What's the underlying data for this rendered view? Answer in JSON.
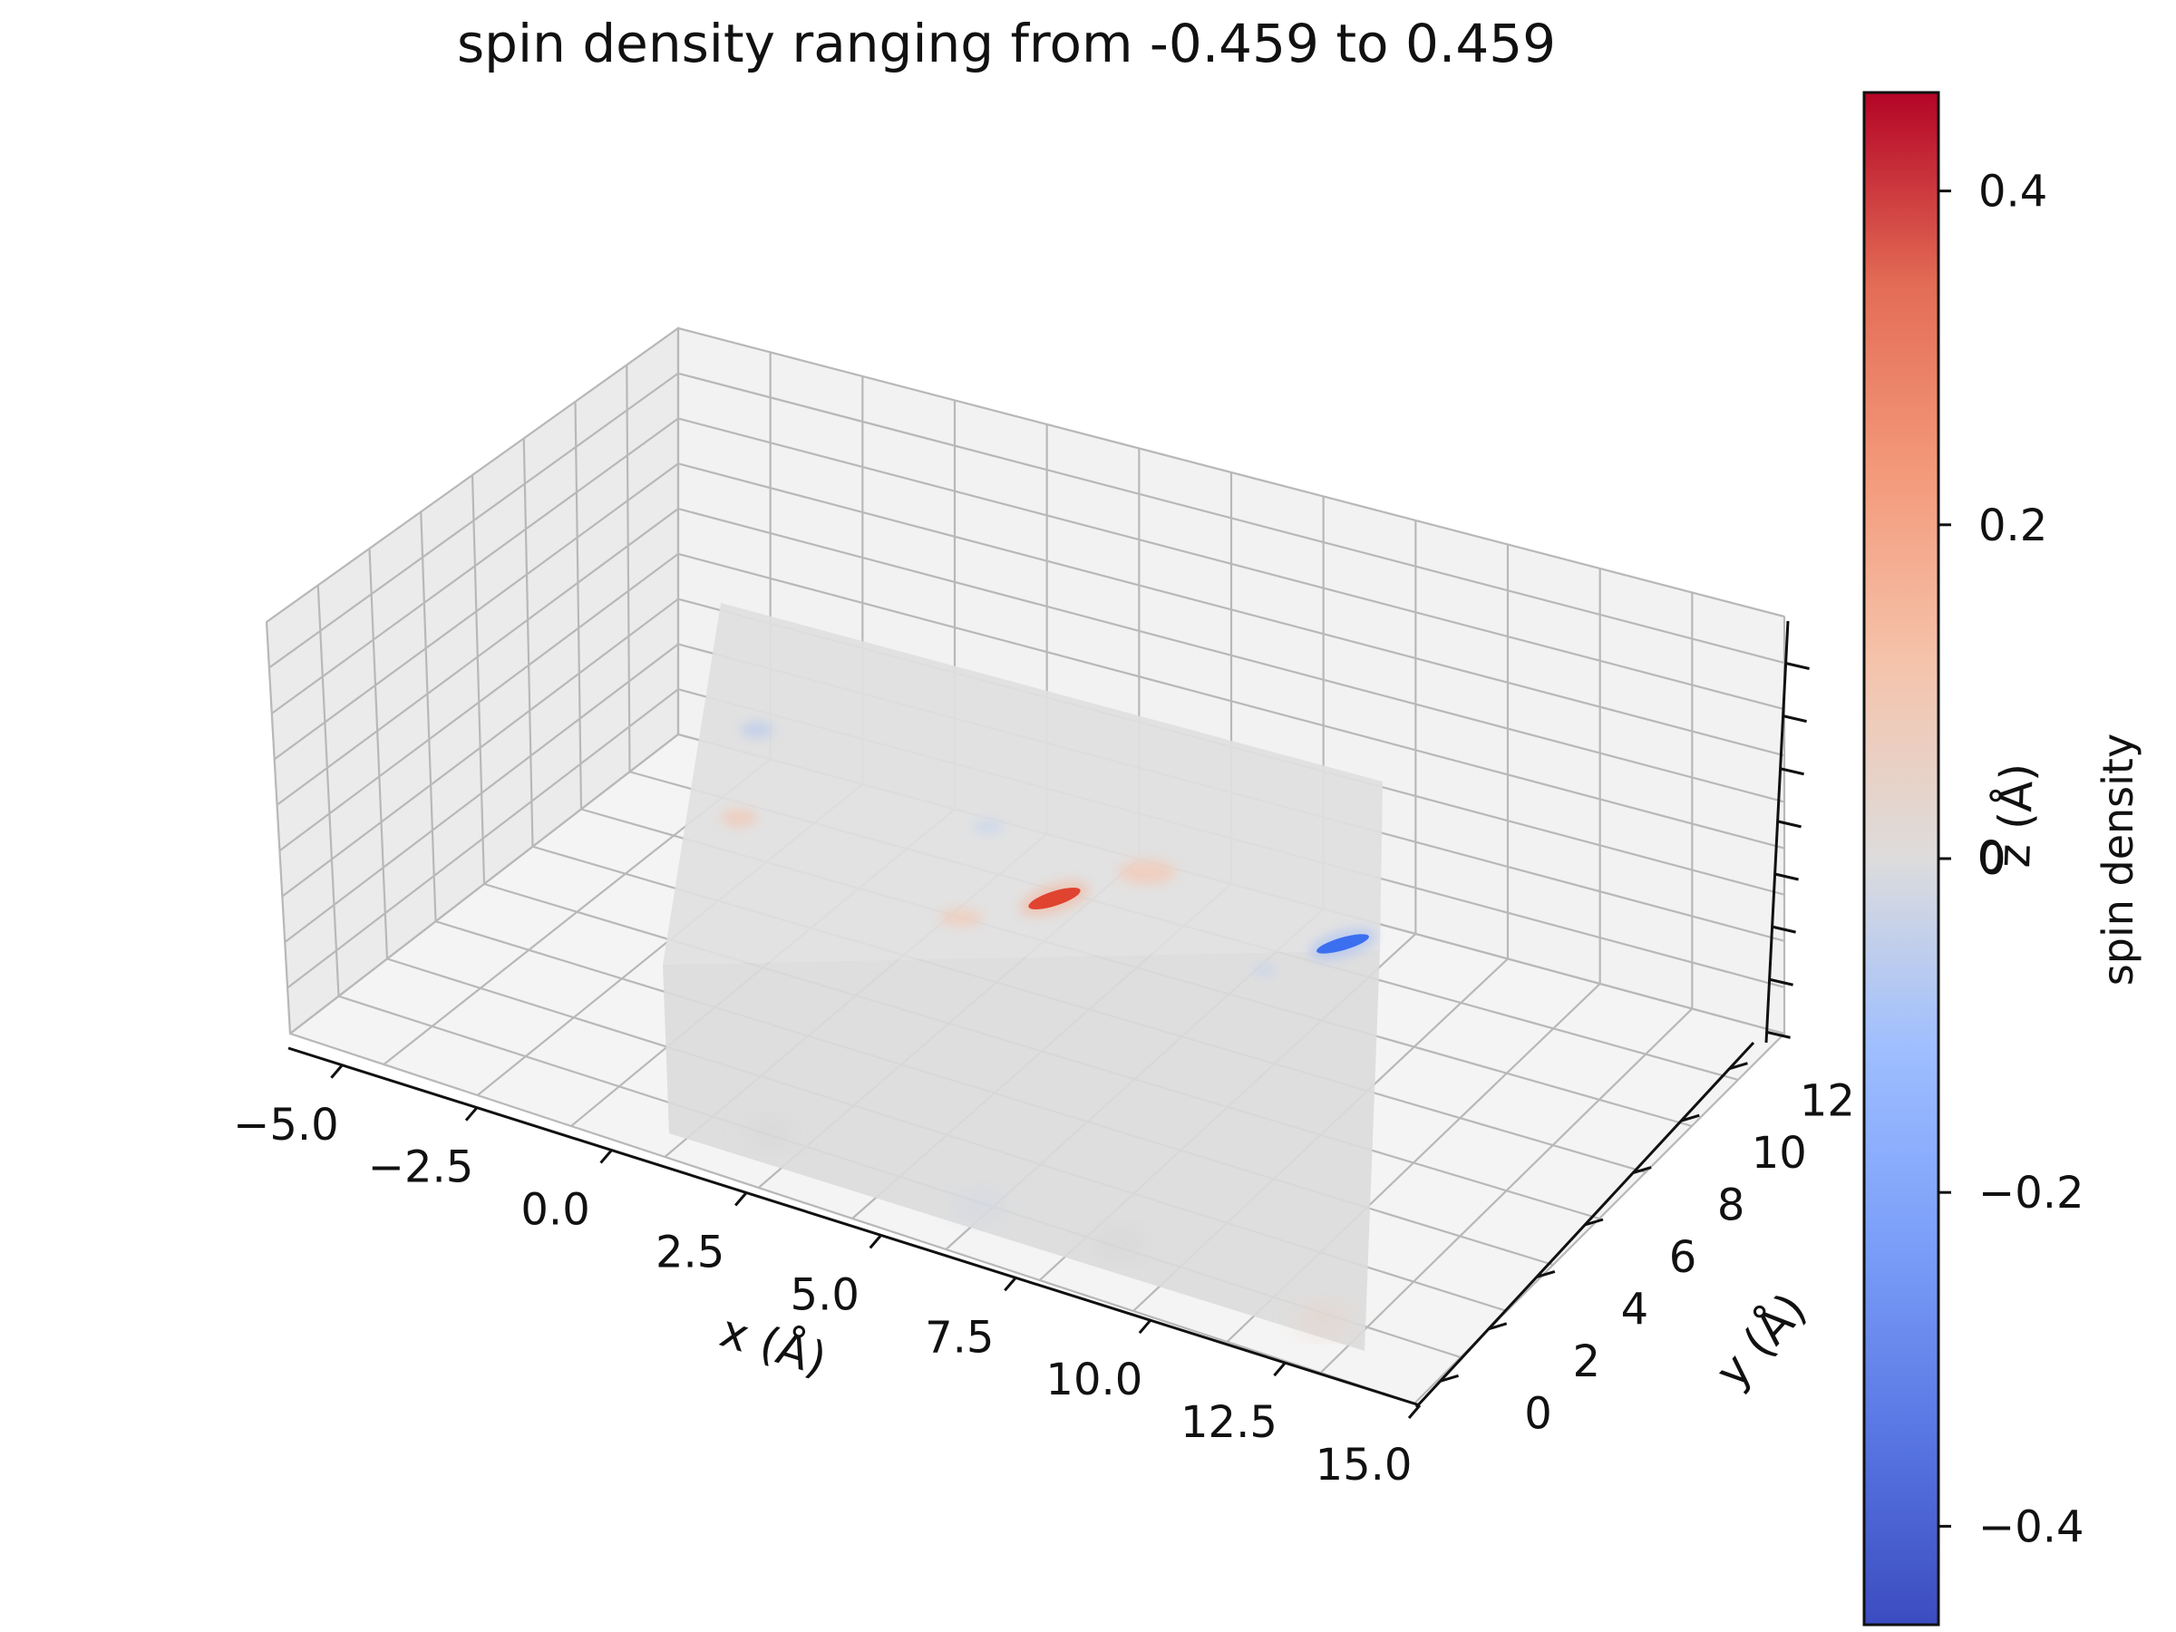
{
  "chart_data": {
    "type": "heatmap",
    "projection": "3d",
    "title": "spin density ranging from -0.459 to 0.459",
    "xlabel": "x (Å)",
    "ylabel": "y (Å)",
    "zlabel": "z (Å)",
    "x_ticks": [
      "−5.0",
      "−2.5",
      "0.0",
      "2.5",
      "5.0",
      "7.5",
      "10.0",
      "12.5",
      "15.0"
    ],
    "y_ticks": [
      "0",
      "2",
      "4",
      "6",
      "8",
      "10",
      "12"
    ],
    "z_ticks_visible": [
      "0"
    ],
    "xlim": [
      -6.0,
      15.0
    ],
    "ylim": [
      -1.0,
      13.0
    ],
    "colormap": "coolwarm",
    "color_range": [
      -0.459,
      0.459
    ],
    "colorbar": {
      "label": "spin density",
      "ticks": [
        "−0.4",
        "−0.2",
        "0",
        "0.2",
        "0.4"
      ],
      "tick_values": [
        -0.4,
        -0.2,
        0.0,
        0.2,
        0.4
      ],
      "placement": "right"
    },
    "grid": true,
    "features": [
      {
        "kind": "positive spin lobe",
        "value": 0.459,
        "color": "#e0432f"
      },
      {
        "kind": "negative spin lobe",
        "value": -0.459,
        "color": "#3b6ff0"
      },
      {
        "kind": "weak positive spots",
        "value": 0.08,
        "color": "#f0bfa8"
      },
      {
        "kind": "weak negative spots",
        "value": -0.06,
        "color": "#c3d3ef"
      }
    ]
  }
}
